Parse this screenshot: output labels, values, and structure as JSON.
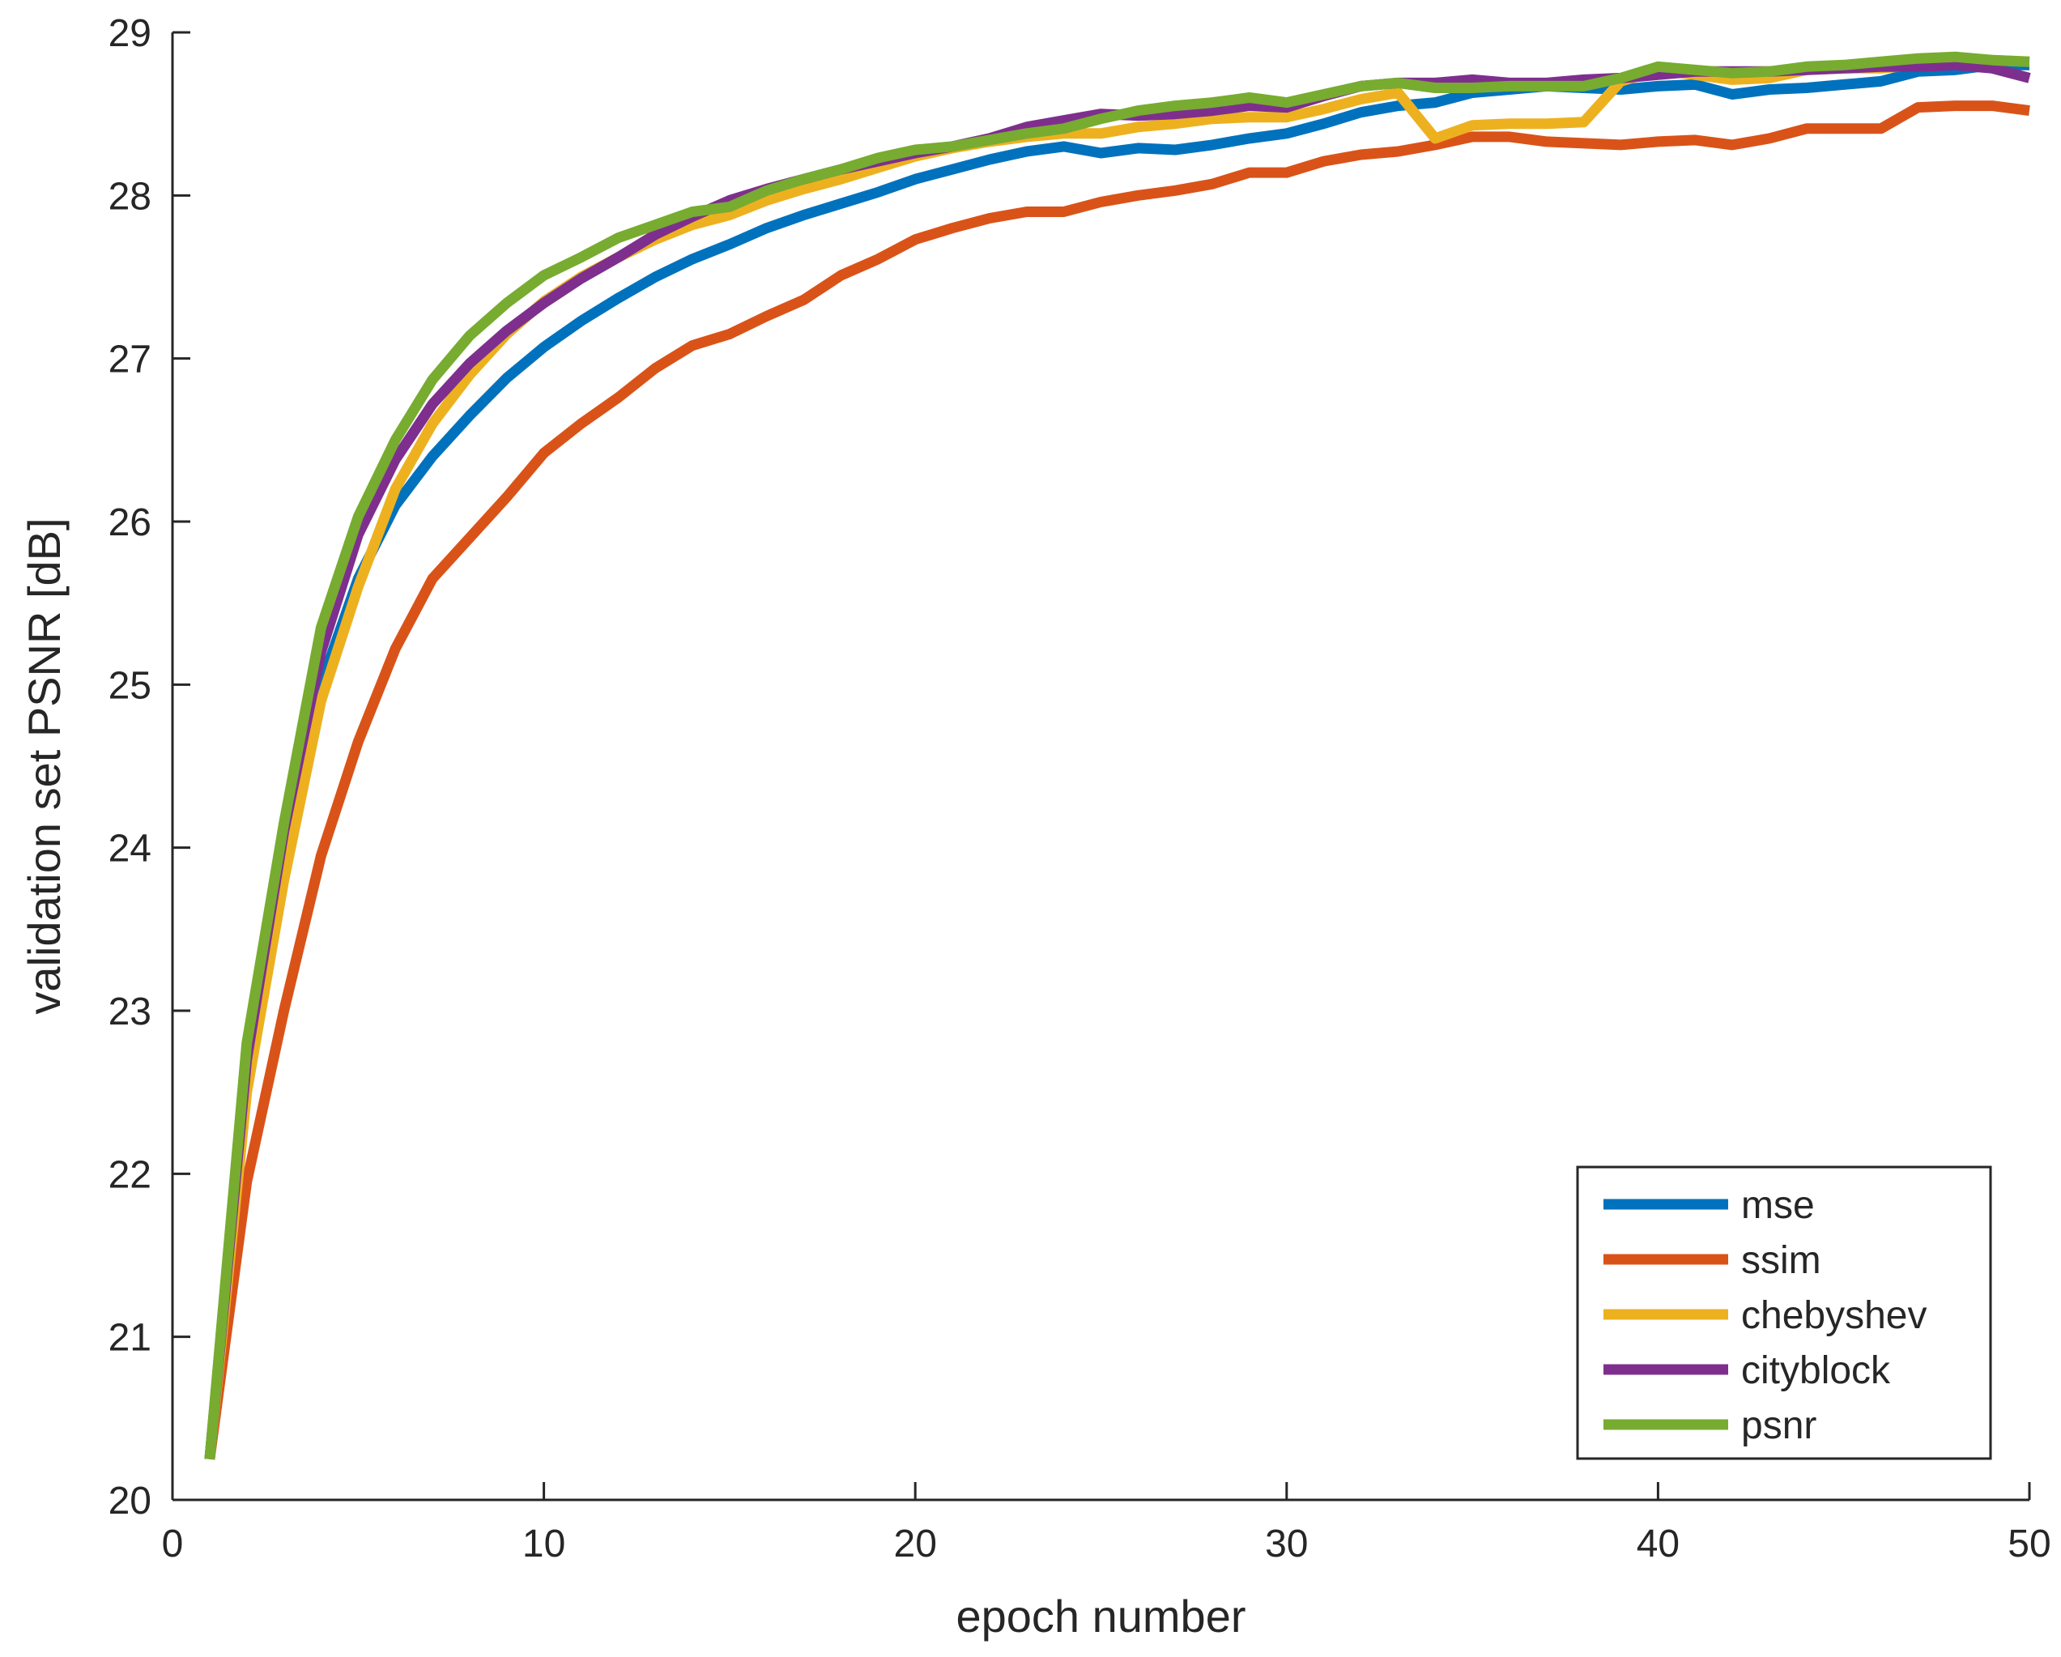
{
  "chart_data": {
    "type": "line",
    "title": "",
    "xlabel": "epoch number",
    "ylabel": "validation set PSNR [dB]",
    "xlim": [
      0,
      50
    ],
    "ylim": [
      20,
      29
    ],
    "xticks": [
      0,
      10,
      20,
      30,
      40,
      50
    ],
    "yticks": [
      20,
      21,
      22,
      23,
      24,
      25,
      26,
      27,
      28,
      29
    ],
    "xtick_labels": [
      "0",
      "10",
      "20",
      "30",
      "40",
      "50"
    ],
    "ytick_labels": [
      "20",
      "21",
      "22",
      "23",
      "24",
      "25",
      "26",
      "27",
      "28",
      "29"
    ],
    "grid": false,
    "legend_position": "bottom-right",
    "x": [
      1,
      2,
      3,
      4,
      5,
      6,
      7,
      8,
      9,
      10,
      11,
      12,
      13,
      14,
      15,
      16,
      17,
      18,
      19,
      20,
      21,
      22,
      23,
      24,
      25,
      26,
      27,
      28,
      29,
      30,
      31,
      32,
      33,
      34,
      35,
      36,
      37,
      38,
      39,
      40,
      41,
      42,
      43,
      44,
      45,
      46,
      47,
      48,
      49,
      50
    ],
    "series": [
      {
        "name": "mse",
        "color": "#0072BD",
        "values": [
          20.25,
          22.6,
          23.9,
          25.0,
          25.65,
          26.1,
          26.4,
          26.65,
          26.88,
          27.07,
          27.23,
          27.37,
          27.5,
          27.61,
          27.7,
          27.8,
          27.88,
          27.95,
          28.02,
          28.1,
          28.16,
          28.22,
          28.27,
          28.3,
          28.26,
          28.29,
          28.28,
          28.31,
          28.35,
          28.38,
          28.44,
          28.51,
          28.55,
          28.57,
          28.63,
          28.65,
          28.67,
          28.66,
          28.65,
          28.67,
          28.68,
          28.62,
          28.65,
          28.66,
          28.68,
          28.7,
          28.76,
          28.77,
          28.8,
          28.8
        ]
      },
      {
        "name": "ssim",
        "color": "#D95319",
        "values": [
          20.25,
          21.95,
          23.0,
          23.95,
          24.65,
          25.22,
          25.65,
          25.9,
          26.15,
          26.42,
          26.6,
          26.76,
          26.94,
          27.08,
          27.15,
          27.26,
          27.36,
          27.51,
          27.61,
          27.73,
          27.8,
          27.86,
          27.9,
          27.9,
          27.96,
          28.0,
          28.03,
          28.07,
          28.14,
          28.14,
          28.21,
          28.25,
          28.27,
          28.31,
          28.36,
          28.36,
          28.33,
          28.32,
          28.31,
          28.33,
          28.34,
          28.31,
          28.35,
          28.41,
          28.41,
          28.41,
          28.54,
          28.55,
          28.55,
          28.52
        ]
      },
      {
        "name": "chebyshev",
        "color": "#EDB120",
        "values": [
          20.25,
          22.5,
          23.8,
          24.9,
          25.6,
          26.2,
          26.6,
          26.9,
          27.15,
          27.35,
          27.5,
          27.62,
          27.73,
          27.82,
          27.88,
          27.97,
          28.04,
          28.1,
          28.17,
          28.24,
          28.29,
          28.33,
          28.36,
          28.38,
          28.38,
          28.42,
          28.44,
          28.47,
          28.48,
          28.48,
          28.53,
          28.59,
          28.63,
          28.35,
          28.43,
          28.44,
          28.44,
          28.45,
          28.7,
          28.77,
          28.74,
          28.71,
          28.72,
          28.77,
          28.78,
          28.78,
          28.8,
          28.8,
          28.83,
          28.82
        ]
      },
      {
        "name": "cityblock",
        "color": "#7E2F8E",
        "values": [
          20.25,
          22.7,
          24.1,
          25.2,
          25.92,
          26.38,
          26.72,
          26.97,
          27.17,
          27.34,
          27.49,
          27.62,
          27.76,
          27.87,
          27.97,
          28.04,
          28.1,
          28.16,
          28.21,
          28.26,
          28.3,
          28.35,
          28.42,
          28.46,
          28.5,
          28.49,
          28.5,
          28.52,
          28.55,
          28.54,
          28.61,
          28.67,
          28.69,
          28.69,
          28.71,
          28.69,
          28.69,
          28.71,
          28.72,
          28.74,
          28.76,
          28.76,
          28.76,
          28.77,
          28.78,
          28.79,
          28.79,
          28.8,
          28.78,
          28.72
        ]
      },
      {
        "name": "psnr",
        "color": "#77AC30",
        "values": [
          20.25,
          22.8,
          24.15,
          25.35,
          26.03,
          26.5,
          26.87,
          27.14,
          27.34,
          27.51,
          27.62,
          27.74,
          27.82,
          27.9,
          27.93,
          28.03,
          28.1,
          28.16,
          28.23,
          28.28,
          28.3,
          28.34,
          28.38,
          28.41,
          28.47,
          28.52,
          28.55,
          28.57,
          28.6,
          28.57,
          28.62,
          28.67,
          28.69,
          28.66,
          28.66,
          28.67,
          28.67,
          28.67,
          28.72,
          28.79,
          28.77,
          28.75,
          28.76,
          28.79,
          28.8,
          28.82,
          28.84,
          28.85,
          28.83,
          28.82
        ]
      }
    ]
  }
}
